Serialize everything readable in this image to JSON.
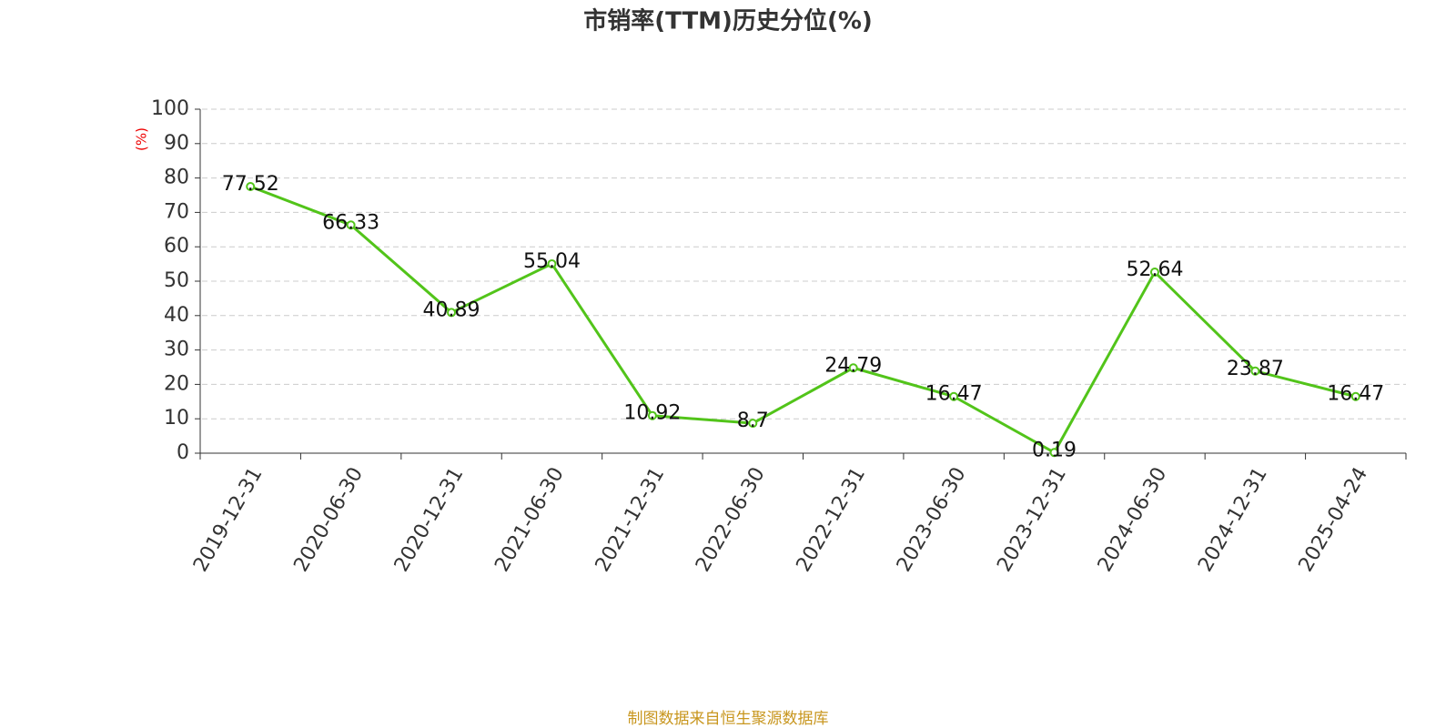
{
  "chart_data": {
    "type": "line",
    "title": "市销率(TTM)历史分位(%)",
    "y_label": "(%)",
    "source": "制图数据来自恒生聚源数据库",
    "categories": [
      "2019-12-31",
      "2020-06-30",
      "2020-12-31",
      "2021-06-30",
      "2021-12-31",
      "2022-06-30",
      "2022-12-31",
      "2023-06-30",
      "2023-12-31",
      "2024-06-30",
      "2024-12-31",
      "2025-04-24"
    ],
    "series": [
      {
        "name": "市销率(TTM)历史分位",
        "color": "#52c41a",
        "values": [
          77.52,
          66.33,
          40.89,
          55.04,
          10.92,
          8.7,
          24.79,
          16.47,
          0.19,
          52.64,
          23.87,
          16.47
        ]
      }
    ],
    "ylim": [
      0,
      100
    ],
    "yticks": [
      0,
      10,
      20,
      30,
      40,
      50,
      60,
      70,
      80,
      90,
      100
    ],
    "grid": true
  }
}
